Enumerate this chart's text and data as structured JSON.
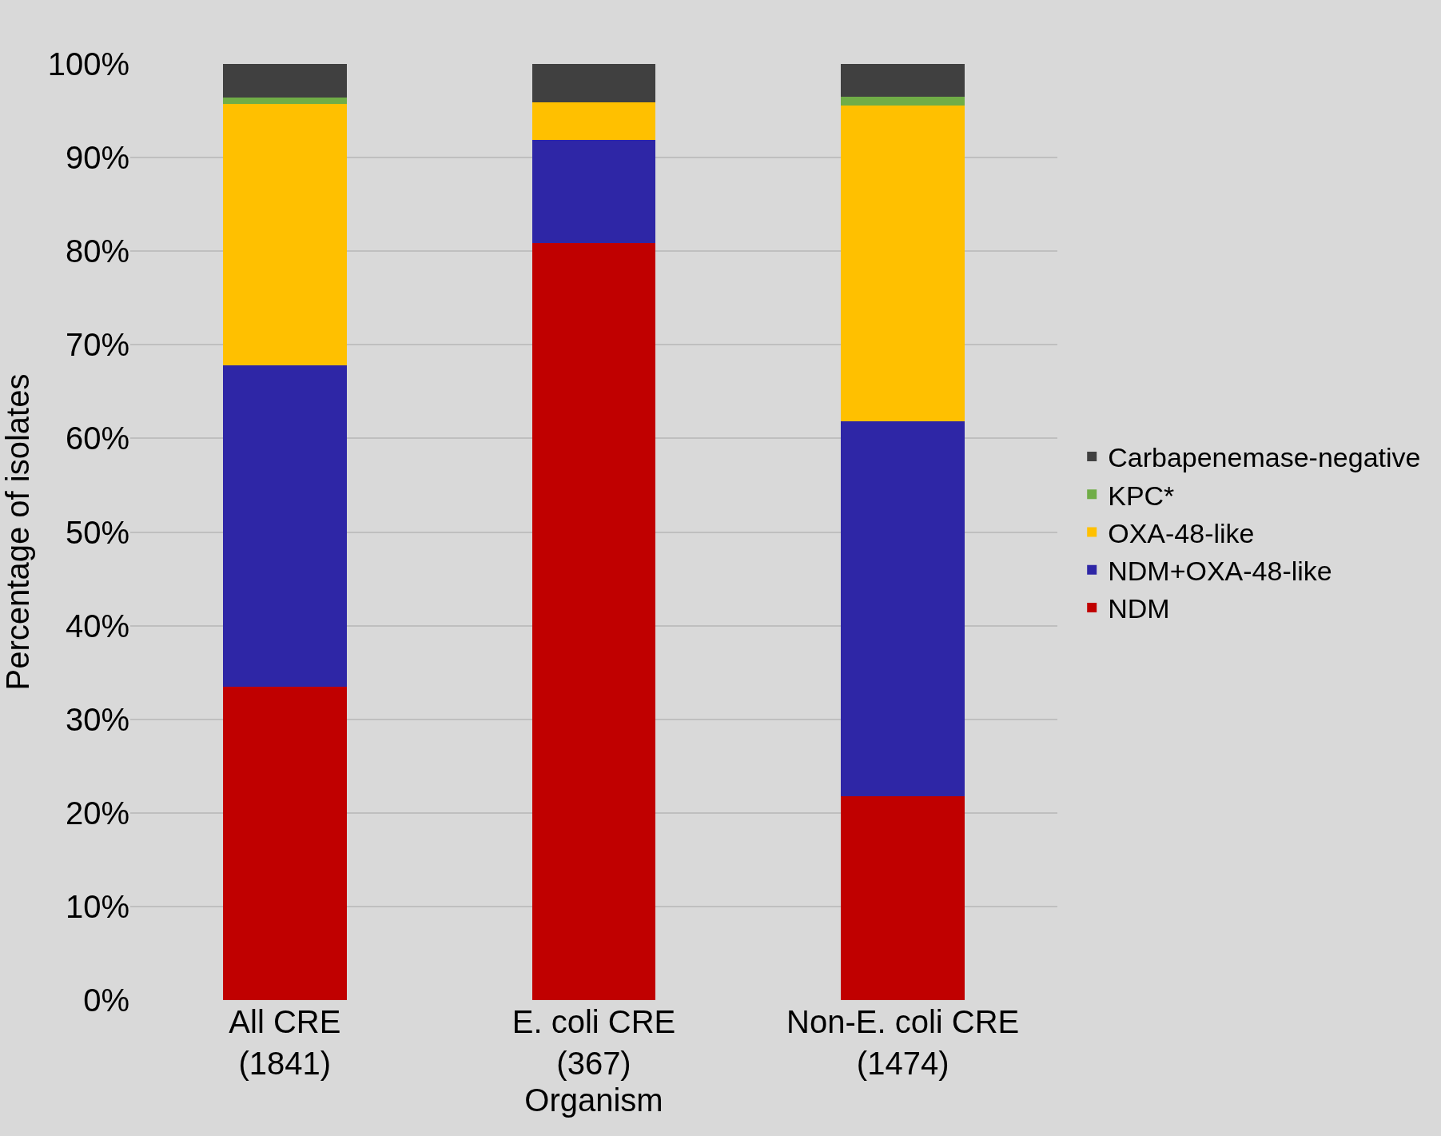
{
  "chart_data": {
    "type": "bar",
    "stacked": true,
    "xlabel": "Organism",
    "ylabel": "Percentage of isolates",
    "categories": [
      "All CRE\n(1841)",
      "E. coli CRE\n(367)",
      "Non-E. coli CRE\n(1474)"
    ],
    "series": [
      {
        "name": "NDM",
        "color": "#c00000",
        "values": [
          33.5,
          80.9,
          21.8
        ]
      },
      {
        "name": "NDM+OXA-48-like",
        "color": "#2e26a6",
        "values": [
          34.3,
          11.0,
          40.0
        ]
      },
      {
        "name": "OXA-48-like",
        "color": "#ffc000",
        "values": [
          27.9,
          4.0,
          33.8
        ]
      },
      {
        "name": "KPC*",
        "color": "#70ad47",
        "values": [
          0.7,
          0,
          0.9
        ]
      },
      {
        "name": "Carbapenemase-negative",
        "color": "#404040",
        "values": [
          3.6,
          4.1,
          3.5
        ]
      }
    ],
    "ylim": [
      0,
      100
    ],
    "yticks": [
      {
        "value": 0,
        "label": "0%"
      },
      {
        "value": 10,
        "label": "10%"
      },
      {
        "value": 20,
        "label": "20%"
      },
      {
        "value": 30,
        "label": "30%"
      },
      {
        "value": 40,
        "label": "40%"
      },
      {
        "value": 50,
        "label": "50%"
      },
      {
        "value": 60,
        "label": "60%"
      },
      {
        "value": 70,
        "label": "70%"
      },
      {
        "value": 80,
        "label": "80%"
      },
      {
        "value": 90,
        "label": "90%"
      },
      {
        "value": 100,
        "label": "100%"
      }
    ],
    "grid": "y",
    "legend": "right"
  }
}
